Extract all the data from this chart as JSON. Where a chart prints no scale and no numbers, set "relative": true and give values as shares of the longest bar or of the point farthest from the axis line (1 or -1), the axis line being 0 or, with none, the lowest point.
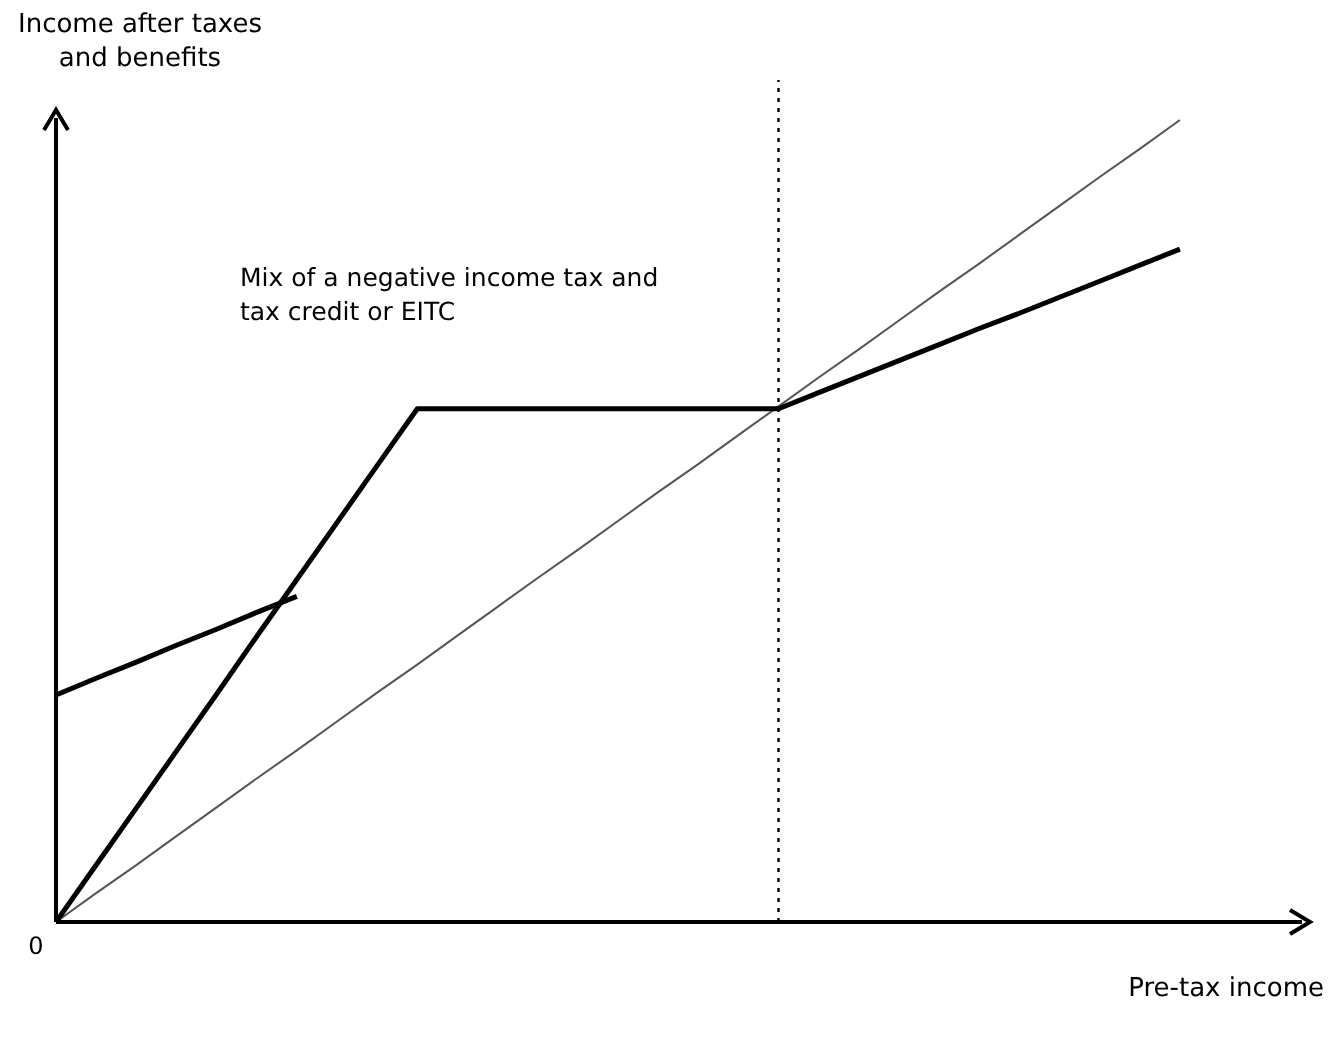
{
  "chart_data": {
    "type": "line",
    "relative": true,
    "xlabel": "Pre-tax income",
    "ylabel": "Income after taxes and benefits",
    "annotations": [
      "Mix of a negative income tax and tax credit or EITC",
      "0"
    ],
    "categories": [
      null,
      null,
      null,
      null,
      null,
      null,
      null,
      null,
      null,
      null,
      null,
      null,
      null,
      null,
      null,
      null,
      null,
      null,
      null,
      null,
      null,
      null,
      null,
      null,
      null,
      null,
      null,
      null,
      null,
      null,
      null,
      null
    ],
    "series": [
      {
        "values": [
          0,
          0.036,
          0.071,
          0.107,
          0.143,
          0.179,
          0.214,
          0.25,
          0.286,
          0.321,
          0.357,
          0.393,
          0.429,
          0.464,
          0.5,
          0.536,
          0.571,
          0.607,
          0.643,
          0.679,
          0.714,
          0.75,
          0.786,
          0.821,
          0.857,
          0.893,
          0.929,
          0.964,
          1,
          null,
          null,
          null
        ],
        "color": "#555555"
      },
      {
        "values": [
          0,
          0.071,
          0.142,
          0.213,
          0.284,
          0.356,
          0.427,
          0.498,
          0.569,
          0.64,
          0.64,
          0.64,
          0.64,
          0.64,
          0.64,
          0.64,
          0.64,
          0.64,
          0.64,
          0.66,
          0.68,
          0.7,
          0.72,
          0.74,
          0.759,
          0.779,
          0.799,
          0.819,
          0.839,
          null,
          null,
          null
        ],
        "color": "#000000"
      },
      {
        "values": [
          0.283,
          0.304,
          0.324,
          0.345,
          0.365,
          0.386,
          0.406,
          null,
          null,
          null,
          null,
          null,
          null,
          null,
          null,
          null,
          null,
          null,
          null,
          null,
          null,
          null,
          null,
          null,
          null,
          null,
          null,
          null,
          null,
          null,
          null,
          null
        ],
        "color": "#000000"
      }
    ],
    "line_style": "solid"
  }
}
